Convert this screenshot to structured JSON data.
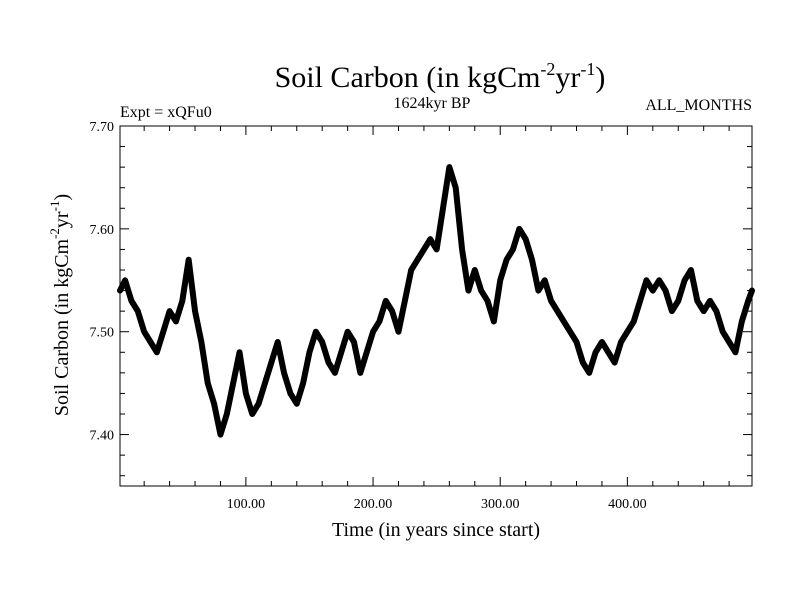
{
  "chart_data": {
    "type": "line",
    "title": {
      "main": "Soil Carbon (in kgCm",
      "sup1": "-2",
      "mid": "yr",
      "sup2": "-1",
      "close": ")"
    },
    "left_label": "Expt = xQFu0",
    "center_label": "1624kyr BP",
    "right_label": "ALL_MONTHS",
    "xlabel": "Time (in years since start)",
    "ylabel": {
      "main": "Soil Carbon (in kgCm",
      "sup1": "-2",
      "mid": "yr",
      "sup2": "-1",
      "close": ")"
    },
    "xlim": [
      1,
      498
    ],
    "ylim": [
      7.35,
      7.7
    ],
    "x_ticks": [
      {
        "value": 100,
        "label": "100.00"
      },
      {
        "value": 200,
        "label": "200.00"
      },
      {
        "value": 300,
        "label": "300.00"
      },
      {
        "value": 400,
        "label": "400.00"
      }
    ],
    "y_ticks": [
      {
        "value": 7.4,
        "label": "7.40"
      },
      {
        "value": 7.5,
        "label": "7.50"
      },
      {
        "value": 7.6,
        "label": "7.60"
      },
      {
        "value": 7.7,
        "label": "7.70"
      }
    ],
    "grid": false,
    "line_color": "#000000",
    "series": [
      {
        "x": [
          1,
          5,
          10,
          15,
          20,
          25,
          30,
          35,
          40,
          45,
          50,
          55,
          60,
          65,
          70,
          75,
          80,
          85,
          90,
          95,
          100,
          105,
          110,
          115,
          120,
          125,
          130,
          135,
          140,
          145,
          150,
          155,
          160,
          165,
          170,
          175,
          180,
          185,
          190,
          195,
          200,
          205,
          210,
          215,
          220,
          225,
          230,
          235,
          240,
          245,
          250,
          255,
          260,
          265,
          270,
          275,
          280,
          285,
          290,
          295,
          300,
          305,
          310,
          315,
          320,
          325,
          330,
          335,
          340,
          345,
          350,
          355,
          360,
          365,
          370,
          375,
          380,
          385,
          390,
          395,
          400,
          405,
          410,
          415,
          420,
          425,
          430,
          435,
          440,
          445,
          450,
          455,
          460,
          465,
          470,
          475,
          480,
          485,
          490,
          495,
          498
        ],
        "y": [
          7.54,
          7.55,
          7.53,
          7.52,
          7.5,
          7.49,
          7.48,
          7.5,
          7.52,
          7.51,
          7.53,
          7.57,
          7.52,
          7.49,
          7.45,
          7.43,
          7.4,
          7.42,
          7.45,
          7.48,
          7.44,
          7.42,
          7.43,
          7.45,
          7.47,
          7.49,
          7.46,
          7.44,
          7.43,
          7.45,
          7.48,
          7.5,
          7.49,
          7.47,
          7.46,
          7.48,
          7.5,
          7.49,
          7.46,
          7.48,
          7.5,
          7.51,
          7.53,
          7.52,
          7.5,
          7.53,
          7.56,
          7.57,
          7.58,
          7.59,
          7.58,
          7.62,
          7.66,
          7.64,
          7.58,
          7.54,
          7.56,
          7.54,
          7.53,
          7.51,
          7.55,
          7.57,
          7.58,
          7.6,
          7.59,
          7.57,
          7.54,
          7.55,
          7.53,
          7.52,
          7.51,
          7.5,
          7.49,
          7.47,
          7.46,
          7.48,
          7.49,
          7.48,
          7.47,
          7.49,
          7.5,
          7.51,
          7.53,
          7.55,
          7.54,
          7.55,
          7.54,
          7.52,
          7.53,
          7.55,
          7.56,
          7.53,
          7.52,
          7.53,
          7.52,
          7.5,
          7.49,
          7.48,
          7.51,
          7.53,
          7.54
        ]
      }
    ]
  }
}
